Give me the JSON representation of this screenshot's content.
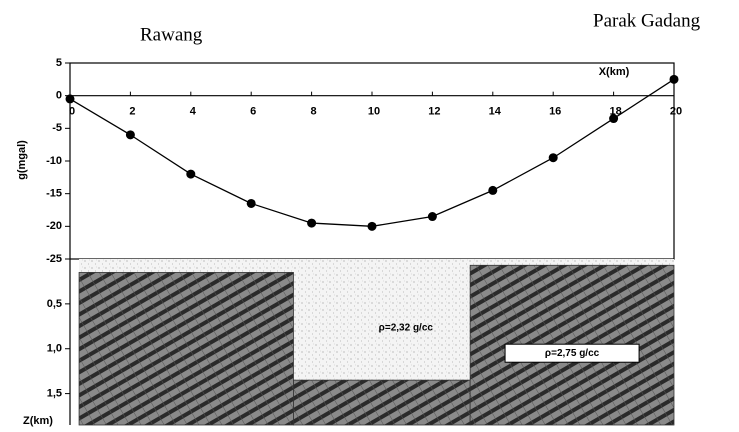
{
  "chart_data": [
    {
      "type": "line",
      "annotations": [
        "Rawang",
        "Parak Gadang"
      ],
      "x_label": "X(km)",
      "y_label": "g(mgal)",
      "x": [
        0,
        2,
        4,
        6,
        8,
        10,
        12,
        14,
        16,
        18,
        20
      ],
      "values": [
        -0.5,
        -6,
        -12,
        -16.5,
        -19.5,
        -20,
        -18.5,
        -14.5,
        -9.5,
        -3.5,
        2.5
      ],
      "color": "#000000",
      "xlim": [
        0,
        20
      ],
      "xticks": [
        0,
        2,
        4,
        6,
        8,
        10,
        12,
        14,
        16,
        18,
        20
      ],
      "ylim": [
        -25,
        5
      ],
      "yticks": [
        5,
        0,
        -5,
        -10,
        -15,
        -20,
        -25
      ]
    },
    {
      "type": "section",
      "y_label": "Z(km)",
      "xlim": [
        0,
        20
      ],
      "ylim": [
        0,
        1.85
      ],
      "yticks": [
        {
          "value": 0.5,
          "label": "0,5"
        },
        {
          "value": 1.0,
          "label": "1,0"
        },
        {
          "value": 1.5,
          "label": "1,5"
        }
      ],
      "layers": [
        {
          "label": "ρ=2,32 g/cc",
          "x": [
            0.3,
            20
          ],
          "z": [
            0,
            1.85
          ]
        },
        {
          "x": [
            0.3,
            7.4
          ],
          "z": [
            0.15,
            1.85
          ]
        },
        {
          "x": [
            7.4,
            13.25
          ],
          "z": [
            1.35,
            1.85
          ]
        },
        {
          "label": "ρ=2,75 g/cc",
          "x": [
            13.25,
            20
          ],
          "z": [
            0.07,
            1.85
          ]
        }
      ]
    }
  ]
}
